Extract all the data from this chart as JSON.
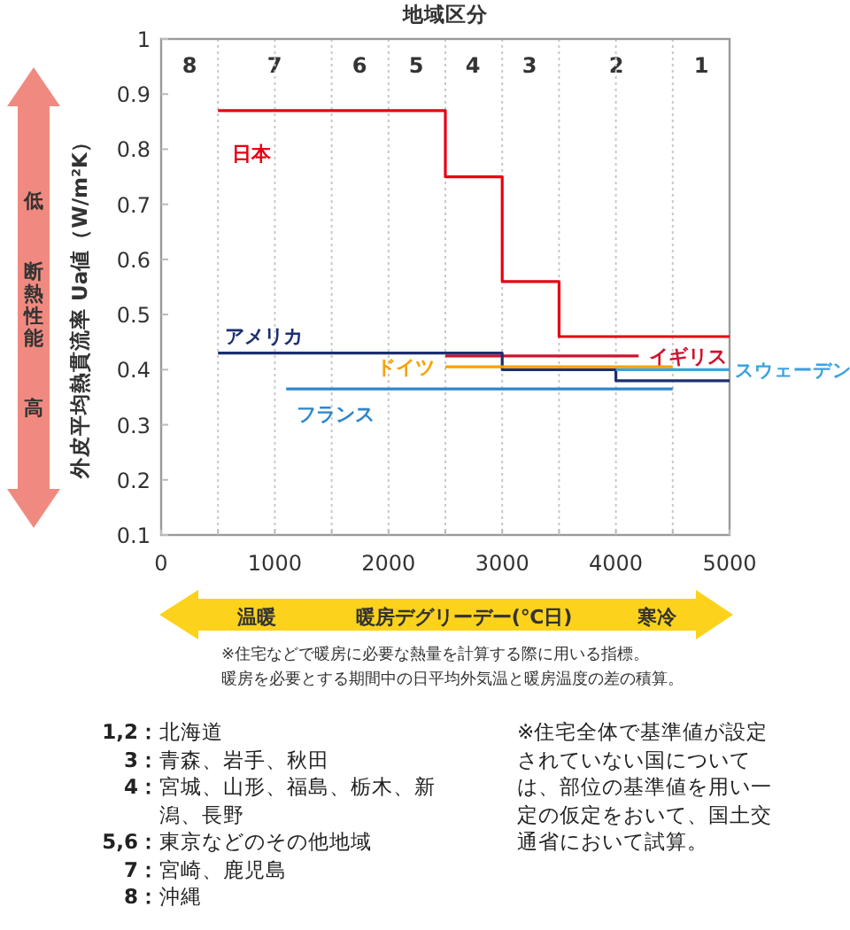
{
  "chart_data": {
    "type": "step",
    "x2label": "地域区分",
    "ylabel": "外皮平均熱貫流率 Ua値（W/m²K）",
    "xlabel": "暖房デグリーデー(℃日)",
    "xlim": [
      0,
      5000
    ],
    "ylim": [
      0.1,
      1
    ],
    "xticks": [
      0,
      {
        "value": 500,
        "label": null
      },
      1000,
      {
        "value": 1500,
        "label": null
      },
      2000,
      {
        "value": 2500,
        "label": null
      },
      3000,
      {
        "value": 3500,
        "label": null
      },
      4000,
      {
        "value": 4500,
        "label": null
      },
      5000
    ],
    "yticks": [
      0.1,
      0.2,
      0.3,
      0.4,
      0.5,
      0.6,
      0.7,
      0.8,
      0.9,
      1
    ],
    "grid": "x",
    "series": [
      {
        "name": "日本",
        "color": "#e60012",
        "x": [
          500,
          2500,
          3000,
          3500,
          5000
        ],
        "values": [
          0.87,
          0.75,
          0.56,
          0.46,
          0.46
        ]
      },
      {
        "name": "イギリス",
        "color": "#d0122c",
        "x": [
          2500,
          4200
        ],
        "values": [
          0.425,
          0.425
        ]
      },
      {
        "name": "アメリカ",
        "color": "#1d2f6f",
        "x": [
          500,
          3000,
          4000,
          5000
        ],
        "values": [
          0.43,
          0.4,
          0.38,
          0.38
        ]
      },
      {
        "name": "ドイツ",
        "color": "#f5a300",
        "x": [
          2500,
          4500
        ],
        "values": [
          0.405,
          0.405
        ]
      },
      {
        "name": "スウェーデン",
        "color": "#3ba3dc",
        "x": [
          4000,
          5000
        ],
        "values": [
          0.4,
          0.4
        ]
      },
      {
        "name": "フランス",
        "color": "#2f86c8",
        "x": [
          1100,
          4500
        ],
        "values": [
          0.365,
          0.365
        ]
      }
    ],
    "annotations": [
      "低",
      "断熱性能",
      "高",
      "温暖",
      "寒冷",
      "※住宅などで暖房に必要な熱量を計算する際に用いる指標。",
      "暖房を必要とする期間中の日平均外気温と暖房温度の差の積算。",
      "1,2：北海道",
      "3：青森、岩手、秋田",
      "4：宮城、山形、福島、栃木、新潟、長野",
      "5,6：東京などのその他地域",
      "7：宮崎、鹿児島",
      "8：沖縄",
      "※住宅全体で基準値が設定されていない国については、部位の基準値を用い一定の仮定をおいて、国土交通省において試算。",
      "8",
      "7",
      "6",
      "5",
      "4",
      "3",
      "2",
      "1"
    ]
  }
}
